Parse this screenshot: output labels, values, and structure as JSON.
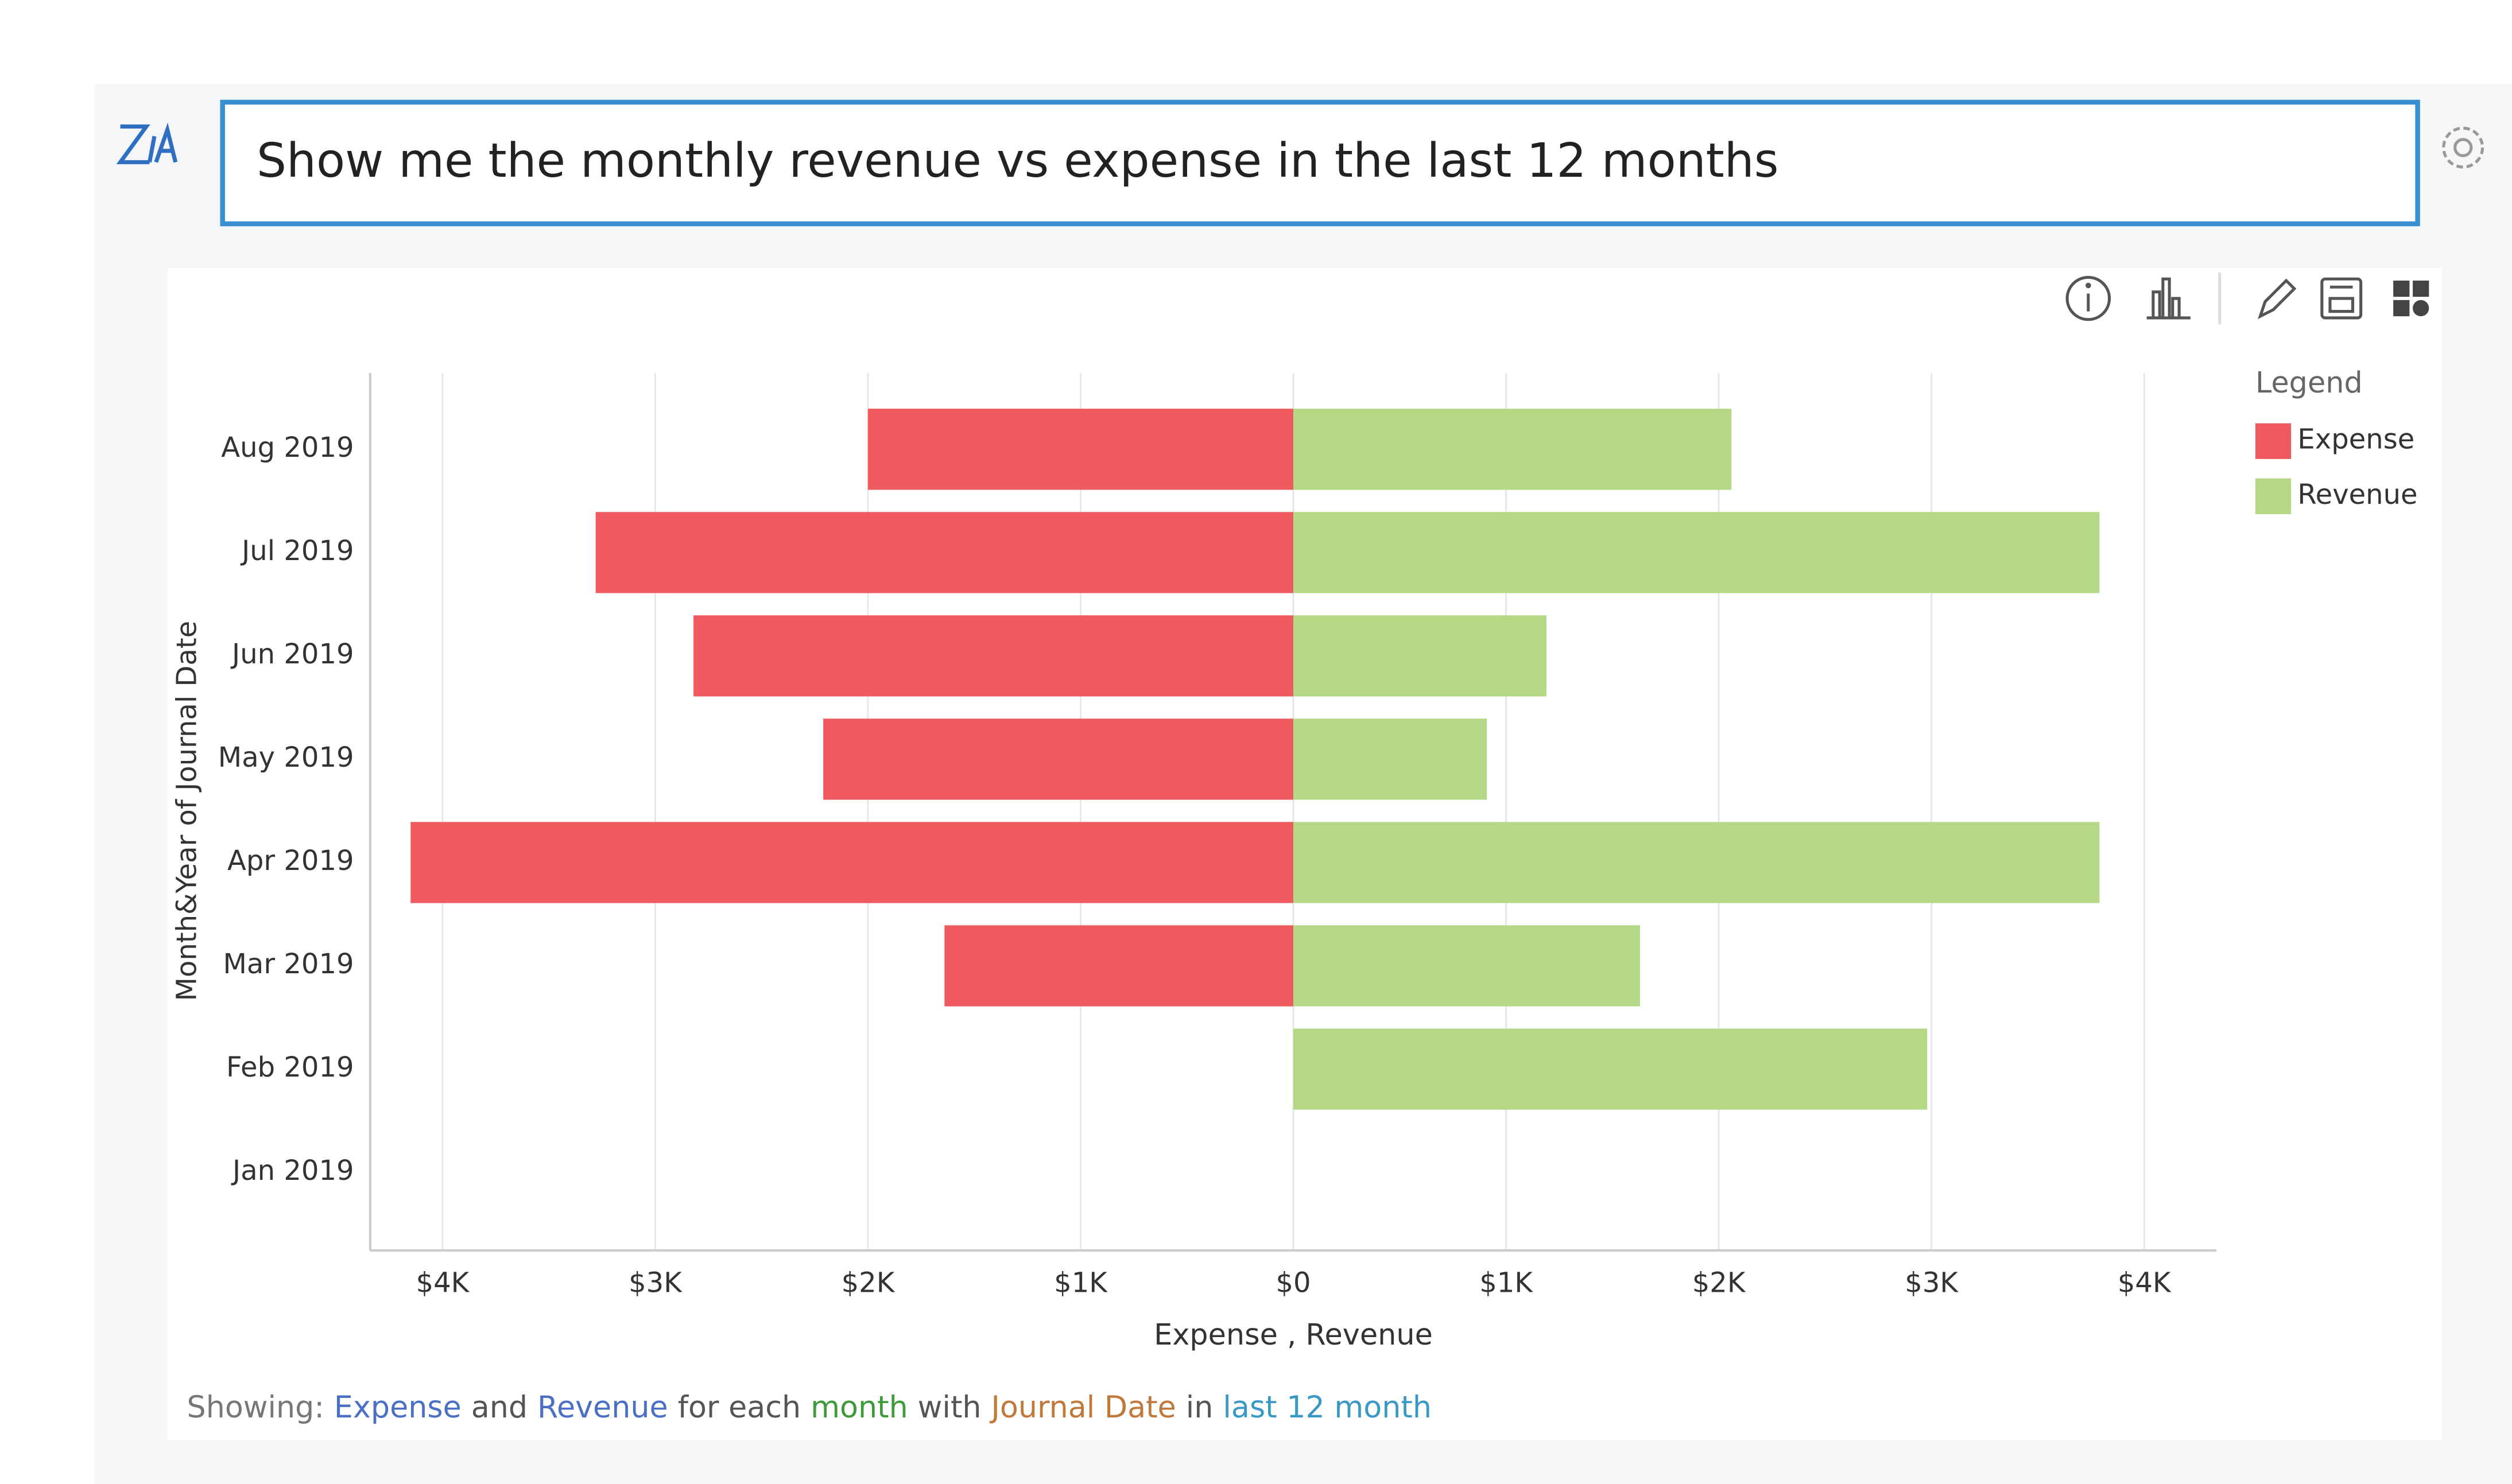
{
  "query": "Show me the monthly revenue vs expense in the last 12 months",
  "chart_data": {
    "type": "diverging-bar",
    "orientation": "horizontal",
    "categories": [
      "Aug 2019",
      "Jul 2019",
      "Jun 2019",
      "May 2019",
      "Apr 2019",
      "Mar 2019",
      "Feb 2019",
      "Jan 2019"
    ],
    "series": [
      {
        "name": "Expense",
        "color": "#ef5a5f",
        "values": [
          -2000,
          -3280,
          -2820,
          -2210,
          -4150,
          -1640,
          null,
          null
        ]
      },
      {
        "name": "Revenue",
        "color": "#b5d887",
        "values": [
          2060,
          3790,
          1190,
          910,
          3790,
          1630,
          2980,
          null
        ]
      }
    ],
    "xlim": [
      -4340,
      4340
    ],
    "xticks": [
      {
        "value": -4000,
        "label": "$4K"
      },
      {
        "value": -3000,
        "label": "$3K"
      },
      {
        "value": -2000,
        "label": "$2K"
      },
      {
        "value": -1000,
        "label": "$1K"
      },
      {
        "value": 0,
        "label": "$0"
      },
      {
        "value": 1000,
        "label": "$1K"
      },
      {
        "value": 2000,
        "label": "$2K"
      },
      {
        "value": 3000,
        "label": "$3K"
      },
      {
        "value": 4000,
        "label": "$4K"
      }
    ],
    "xlabel": "Expense , Revenue",
    "ylabel": "Month&Year of Journal Date",
    "legend_title": "Legend",
    "legend": "top-right",
    "grid": true
  },
  "footer": [
    {
      "text": "Showing:",
      "color": "#777777"
    },
    {
      "text": "Expense",
      "color": "#4a6fc4"
    },
    {
      "text": "and",
      "color": "#555555"
    },
    {
      "text": "Revenue",
      "color": "#4a6fc4"
    },
    {
      "text": "for each",
      "color": "#555555"
    },
    {
      "text": "month",
      "color": "#3f9a3a"
    },
    {
      "text": "with",
      "color": "#555555"
    },
    {
      "text": "Journal Date",
      "color": "#c0793a"
    },
    {
      "text": "in",
      "color": "#555555"
    },
    {
      "text": "last 12 month",
      "color": "#3a98c4"
    }
  ]
}
